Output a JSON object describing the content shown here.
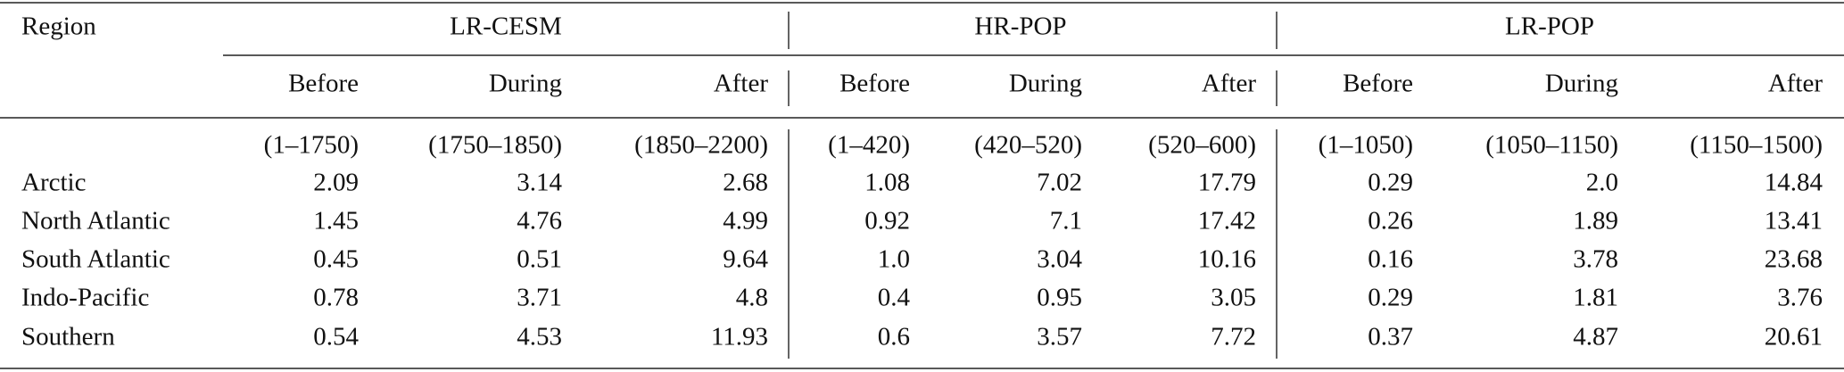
{
  "table": {
    "header": {
      "region": "Region",
      "groups": [
        "LR-CESM",
        "HR-POP",
        "LR-POP"
      ],
      "phases": [
        "Before",
        "During",
        "After",
        "Before",
        "During",
        "After",
        "Before",
        "During",
        "After"
      ],
      "periods": [
        "(1–1750)",
        "(1750–1850)",
        "(1850–2200)",
        "(1–420)",
        "(420–520)",
        "(520–600)",
        "(1–1050)",
        "(1050–1150)",
        "(1150–1500)"
      ]
    },
    "rows": [
      {
        "region": "Arctic",
        "values": [
          "2.09",
          "3.14",
          "2.68",
          "1.08",
          "7.02",
          "17.79",
          "0.29",
          "2.0",
          "14.84"
        ]
      },
      {
        "region": "North Atlantic",
        "values": [
          "1.45",
          "4.76",
          "4.99",
          "0.92",
          "7.1",
          "17.42",
          "0.26",
          "1.89",
          "13.41"
        ]
      },
      {
        "region": "South Atlantic",
        "values": [
          "0.45",
          "0.51",
          "9.64",
          "1.0",
          "3.04",
          "10.16",
          "0.16",
          "3.78",
          "23.68"
        ]
      },
      {
        "region": "Indo-Pacific",
        "values": [
          "0.78",
          "3.71",
          "4.8",
          "0.4",
          "0.95",
          "3.05",
          "0.29",
          "1.81",
          "3.76"
        ]
      },
      {
        "region": "Southern",
        "values": [
          "0.54",
          "4.53",
          "11.93",
          "0.6",
          "3.57",
          "7.72",
          "0.37",
          "4.87",
          "20.61"
        ]
      }
    ]
  }
}
